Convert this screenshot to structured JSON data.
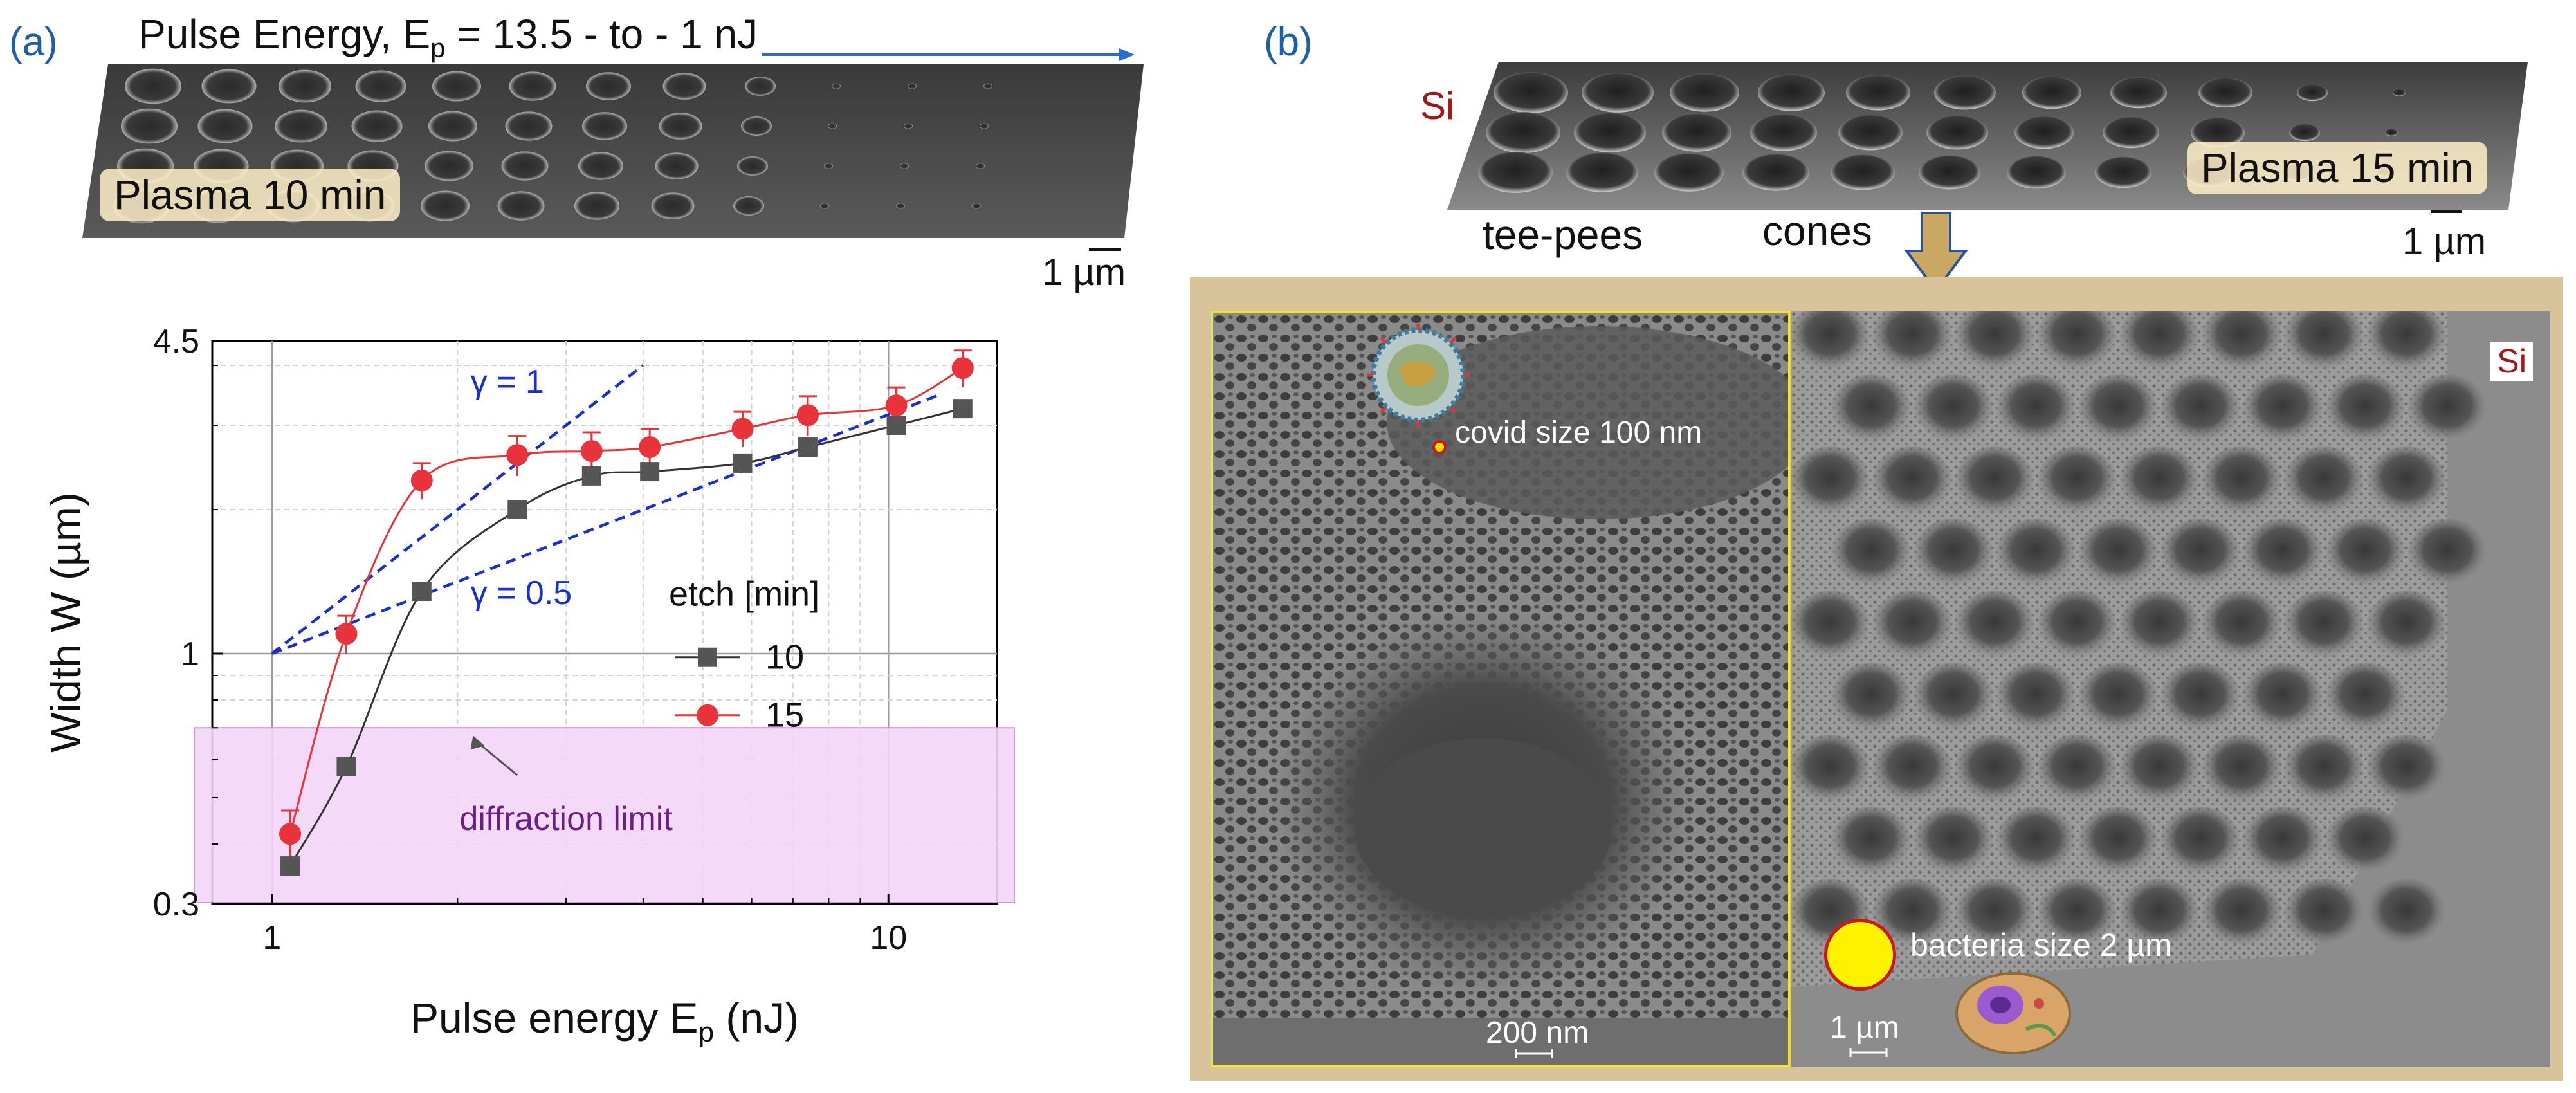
{
  "panel_a": {
    "label": "(a)",
    "header_prefix": "Pulse Energy, E",
    "header_sub": "p",
    "header_suffix": " = 13.5 - to - 1 nJ",
    "plasma_label": "Plasma 10 min",
    "scale_label": "1 µm"
  },
  "panel_b": {
    "label": "(b)",
    "si_top": "Si",
    "plasma_label": "Plasma 15 min",
    "scale_top": "1 µm",
    "teepees": "tee-pees",
    "cones": "cones",
    "covid_label": "covid size 100 nm",
    "scale_left": "200 nm",
    "si_right": "Si",
    "bacteria_label": "bacteria size 2 µm",
    "scale_right": "1 µm"
  },
  "colors": {
    "series10": "#555555",
    "series15": "#e8333a",
    "fit": "#1a2fd0",
    "diffraction": "#f3d6f8",
    "accent_blue": "#1f5fa8"
  },
  "chart_data": {
    "type": "scatter",
    "title": "",
    "xlabel_prefix": "Pulse energy E",
    "xlabel_sub": "p",
    "xlabel_suffix": " (nJ)",
    "ylabel": "Width W (µm)",
    "xscale": "log",
    "yscale": "log",
    "xlim": [
      0.8,
      15
    ],
    "ylim": [
      0.3,
      4.5
    ],
    "x_ticks": [
      "1",
      "10"
    ],
    "y_ticks": [
      "0.3",
      "1",
      "4.5"
    ],
    "legend_title": "etch [min]",
    "legend_position": "center-right",
    "series": [
      {
        "name": "10",
        "x": [
          1.07,
          1.32,
          1.75,
          2.5,
          3.3,
          4.1,
          5.8,
          7.4,
          10.3,
          13.2
        ],
        "y": [
          0.36,
          0.58,
          1.35,
          2.0,
          2.35,
          2.4,
          2.5,
          2.7,
          3.0,
          3.25
        ]
      },
      {
        "name": "15",
        "x": [
          1.07,
          1.32,
          1.75,
          2.5,
          3.3,
          4.1,
          5.8,
          7.4,
          10.3,
          13.2
        ],
        "y": [
          0.42,
          1.1,
          2.3,
          2.6,
          2.65,
          2.7,
          2.95,
          3.15,
          3.3,
          3.95
        ],
        "err": [
          0.05,
          0.1,
          0.2,
          0.25,
          0.25,
          0.25,
          0.25,
          0.3,
          0.3,
          0.35
        ]
      }
    ],
    "fit_lines": [
      {
        "label": "γ = 1",
        "x": [
          1.0,
          4.0
        ],
        "y": [
          1.0,
          4.0
        ]
      },
      {
        "label": "γ = 0.5",
        "x": [
          1.0,
          12.0
        ],
        "y": [
          1.0,
          3.46
        ]
      }
    ],
    "region": {
      "label": "diffraction limit",
      "ymax": 0.7
    }
  }
}
